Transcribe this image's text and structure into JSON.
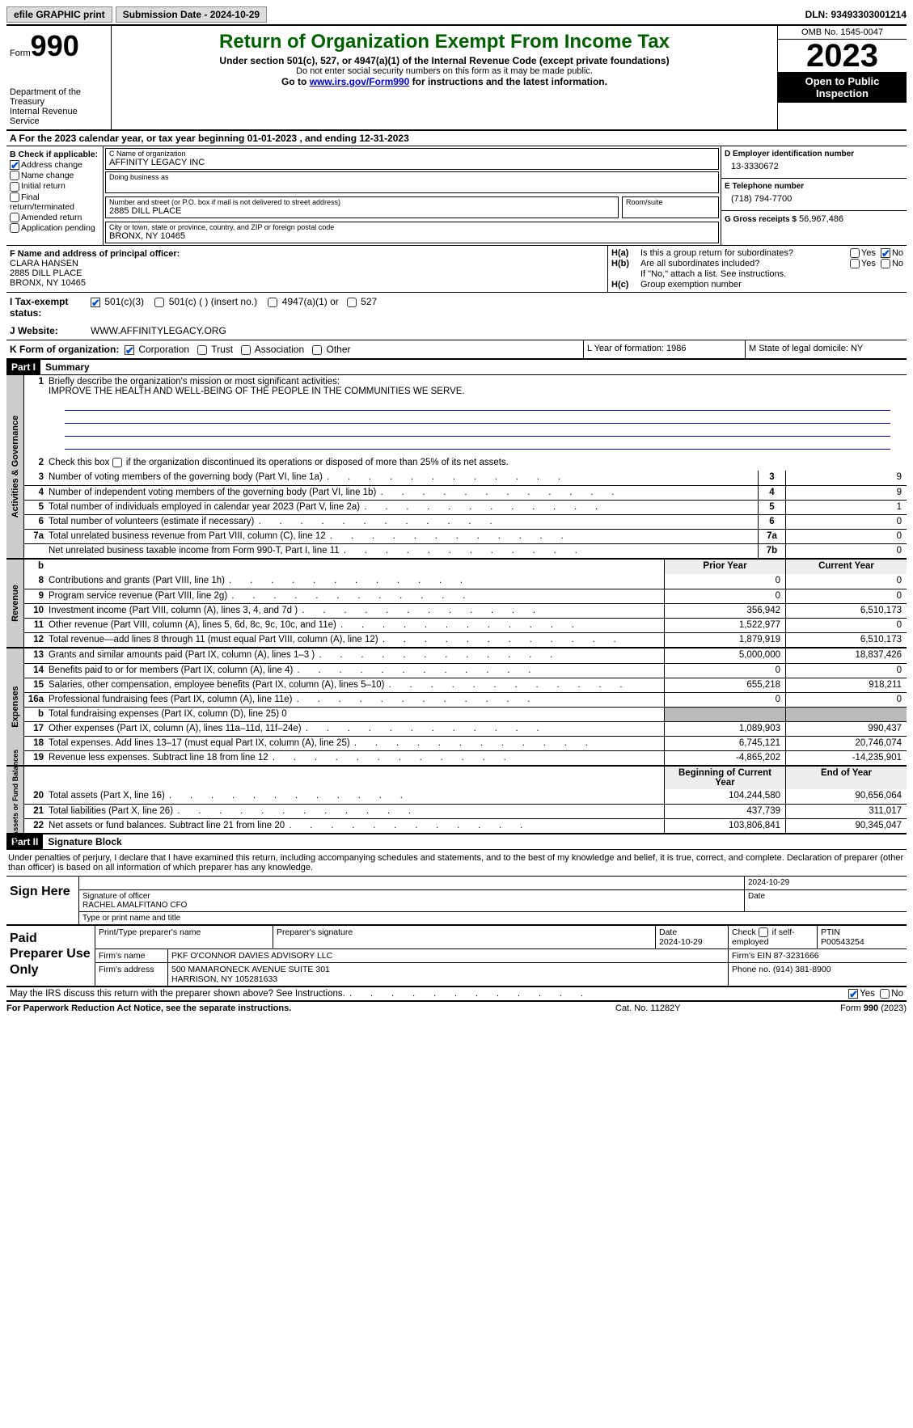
{
  "topbar": {
    "efile": "efile GRAPHIC print",
    "submission": "Submission Date - 2024-10-29",
    "dln": "DLN: 93493303001214"
  },
  "header": {
    "form_label": "Form",
    "form_number": "990",
    "dept": "Department of the Treasury\nInternal Revenue Service",
    "title": "Return of Organization Exempt From Income Tax",
    "sub1": "Under section 501(c), 527, or 4947(a)(1) of the Internal Revenue Code (except private foundations)",
    "sub2": "Do not enter social security numbers on this form as it may be made public.",
    "sub3_pre": "Go to ",
    "sub3_link": "www.irs.gov/Form990",
    "sub3_post": " for instructions and the latest information.",
    "omb": "OMB No. 1545-0047",
    "year": "2023",
    "inspect": "Open to Public Inspection"
  },
  "rowA": "A  For the 2023 calendar year, or tax year beginning 01-01-2023     , and ending 12-31-2023",
  "boxB": {
    "title": "B Check if applicable:",
    "items": [
      "Address change",
      "Name change",
      "Initial return",
      "Final return/terminated",
      "Amended return",
      "Application pending"
    ],
    "checked": [
      true,
      false,
      false,
      false,
      false,
      false
    ]
  },
  "boxC": {
    "name_lbl": "C Name of organization",
    "name": "AFFINITY LEGACY INC",
    "dba_lbl": "Doing business as",
    "dba": "",
    "addr_lbl": "Number and street (or P.O. box if mail is not delivered to street address)",
    "addr": "2885 DILL PLACE",
    "room_lbl": "Room/suite",
    "room": "",
    "city_lbl": "City or town, state or province, country, and ZIP or foreign postal code",
    "city": "BRONX, NY  10465"
  },
  "boxD": {
    "lbl": "D Employer identification number",
    "val": "13-3330672"
  },
  "boxE": {
    "lbl": "E Telephone number",
    "val": "(718) 794-7700"
  },
  "boxG": {
    "lbl": "G Gross receipts $",
    "val": "56,967,486"
  },
  "boxF": {
    "lbl": "F  Name and address of principal officer:",
    "name": "CLARA HANSEN",
    "addr1": "2885 DILL PLACE",
    "addr2": "BRONX, NY  10465"
  },
  "boxH": {
    "ha_lbl": "H(a)",
    "ha_txt": "Is this a group return for subordinates?",
    "ha_yes": false,
    "ha_no": true,
    "hb_lbl": "H(b)",
    "hb_txt": "Are all subordinates included?",
    "hb_yes": false,
    "hb_no": false,
    "hb_note": "If \"No,\" attach a list. See instructions.",
    "hc_lbl": "H(c)",
    "hc_txt": "Group exemption number",
    "hc_val": ""
  },
  "rowI": {
    "lbl": "I   Tax-exempt status:",
    "opts": [
      "501(c)(3)",
      "501(c) (  ) (insert no.)",
      "4947(a)(1) or",
      "527"
    ],
    "checked": [
      true,
      false,
      false,
      false
    ]
  },
  "rowJ": {
    "lbl": "J   Website:",
    "val": "WWW.AFFINITYLEGACY.ORG"
  },
  "rowK": {
    "lbl": "K Form of organization:",
    "opts": [
      "Corporation",
      "Trust",
      "Association",
      "Other"
    ],
    "checked": [
      true,
      false,
      false,
      false
    ],
    "L": "L Year of formation: 1986",
    "M": "M State of legal domicile: NY"
  },
  "partI": {
    "hdr": "Part I",
    "title": "Summary"
  },
  "sectA": {
    "label": "Activities & Governance",
    "l1": "Briefly describe the organization's mission or most significant activities:",
    "mission": "IMPROVE THE HEALTH AND WELL-BEING OF THE PEOPLE IN THE COMMUNITIES WE SERVE.",
    "l2": "Check this box      if the organization discontinued its operations or disposed of more than 25% of its net assets.",
    "rows": [
      {
        "n": "3",
        "t": "Number of voting members of the governing body (Part VI, line 1a)",
        "b": "3",
        "v": "9"
      },
      {
        "n": "4",
        "t": "Number of independent voting members of the governing body (Part VI, line 1b)",
        "b": "4",
        "v": "9"
      },
      {
        "n": "5",
        "t": "Total number of individuals employed in calendar year 2023 (Part V, line 2a)",
        "b": "5",
        "v": "1"
      },
      {
        "n": "6",
        "t": "Total number of volunteers (estimate if necessary)",
        "b": "6",
        "v": "0"
      },
      {
        "n": "7a",
        "t": "Total unrelated business revenue from Part VIII, column (C), line 12",
        "b": "7a",
        "v": "0"
      },
      {
        "n": "",
        "t": "Net unrelated business taxable income from Form 990-T, Part I, line 11",
        "b": "7b",
        "v": "0"
      }
    ]
  },
  "sectRev": {
    "label": "Revenue",
    "hdr_prior": "Prior Year",
    "hdr_curr": "Current Year",
    "rows": [
      {
        "n": "8",
        "t": "Contributions and grants (Part VIII, line 1h)",
        "p": "0",
        "c": "0"
      },
      {
        "n": "9",
        "t": "Program service revenue (Part VIII, line 2g)",
        "p": "0",
        "c": "0"
      },
      {
        "n": "10",
        "t": "Investment income (Part VIII, column (A), lines 3, 4, and 7d )",
        "p": "356,942",
        "c": "6,510,173"
      },
      {
        "n": "11",
        "t": "Other revenue (Part VIII, column (A), lines 5, 6d, 8c, 9c, 10c, and 11e)",
        "p": "1,522,977",
        "c": "0"
      },
      {
        "n": "12",
        "t": "Total revenue—add lines 8 through 11 (must equal Part VIII, column (A), line 12)",
        "p": "1,879,919",
        "c": "6,510,173"
      }
    ]
  },
  "sectExp": {
    "label": "Expenses",
    "rows": [
      {
        "n": "13",
        "t": "Grants and similar amounts paid (Part IX, column (A), lines 1–3 )",
        "p": "5,000,000",
        "c": "18,837,426"
      },
      {
        "n": "14",
        "t": "Benefits paid to or for members (Part IX, column (A), line 4)",
        "p": "0",
        "c": "0"
      },
      {
        "n": "15",
        "t": "Salaries, other compensation, employee benefits (Part IX, column (A), lines 5–10)",
        "p": "655,218",
        "c": "918,211"
      },
      {
        "n": "16a",
        "t": "Professional fundraising fees (Part IX, column (A), line 11e)",
        "p": "0",
        "c": "0"
      },
      {
        "n": "b",
        "t": "Total fundraising expenses (Part IX, column (D), line 25) 0",
        "p": "",
        "c": "",
        "shade": true
      },
      {
        "n": "17",
        "t": "Other expenses (Part IX, column (A), lines 11a–11d, 11f–24e)",
        "p": "1,089,903",
        "c": "990,437"
      },
      {
        "n": "18",
        "t": "Total expenses. Add lines 13–17 (must equal Part IX, column (A), line 25)",
        "p": "6,745,121",
        "c": "20,746,074"
      },
      {
        "n": "19",
        "t": "Revenue less expenses. Subtract line 18 from line 12",
        "p": "-4,865,202",
        "c": "-14,235,901"
      }
    ]
  },
  "sectNet": {
    "label": "Net Assets or Fund Balances",
    "hdr_prior": "Beginning of Current Year",
    "hdr_curr": "End of Year",
    "rows": [
      {
        "n": "20",
        "t": "Total assets (Part X, line 16)",
        "p": "104,244,580",
        "c": "90,656,064"
      },
      {
        "n": "21",
        "t": "Total liabilities (Part X, line 26)",
        "p": "437,739",
        "c": "311,017"
      },
      {
        "n": "22",
        "t": "Net assets or fund balances. Subtract line 21 from line 20",
        "p": "103,806,841",
        "c": "90,345,047"
      }
    ]
  },
  "partII": {
    "hdr": "Part II",
    "title": "Signature Block"
  },
  "sig": {
    "intro": "Under penalties of perjury, I declare that I have examined this return, including accompanying schedules and statements, and to the best of my knowledge and belief, it is true, correct, and complete. Declaration of preparer (other than officer) is based on all information of which preparer has any knowledge.",
    "here": "Sign Here",
    "date": "2024-10-29",
    "sig_lbl": "Signature of officer",
    "date_lbl": "Date",
    "officer": "RACHEL AMALFITANO  CFO",
    "type_lbl": "Type or print name and title"
  },
  "paid": {
    "here": "Paid Preparer Use Only",
    "h1": "Print/Type preparer's name",
    "h2": "Preparer's signature",
    "h3": "Date",
    "h3v": "2024-10-29",
    "h4": "Check       if self-employed",
    "h5": "PTIN",
    "h5v": "P00543254",
    "firm_lbl": "Firm's name",
    "firm": "PKF O'CONNOR DAVIES ADVISORY LLC",
    "ein_lbl": "Firm's EIN",
    "ein": "87-3231666",
    "addr_lbl": "Firm's address",
    "addr1": "500 MAMARONECK AVENUE SUITE 301",
    "addr2": "HARRISON, NY  105281633",
    "phone_lbl": "Phone no.",
    "phone": "(914) 381-8900"
  },
  "discuss": {
    "txt": "May the IRS discuss this return with the preparer shown above? See Instructions.",
    "yes": true,
    "no": false
  },
  "footer": {
    "f1": "For Paperwork Reduction Act Notice, see the separate instructions.",
    "f2": "Cat. No. 11282Y",
    "f3_a": "Form ",
    "f3_b": "990",
    "f3_c": " (2023)"
  }
}
